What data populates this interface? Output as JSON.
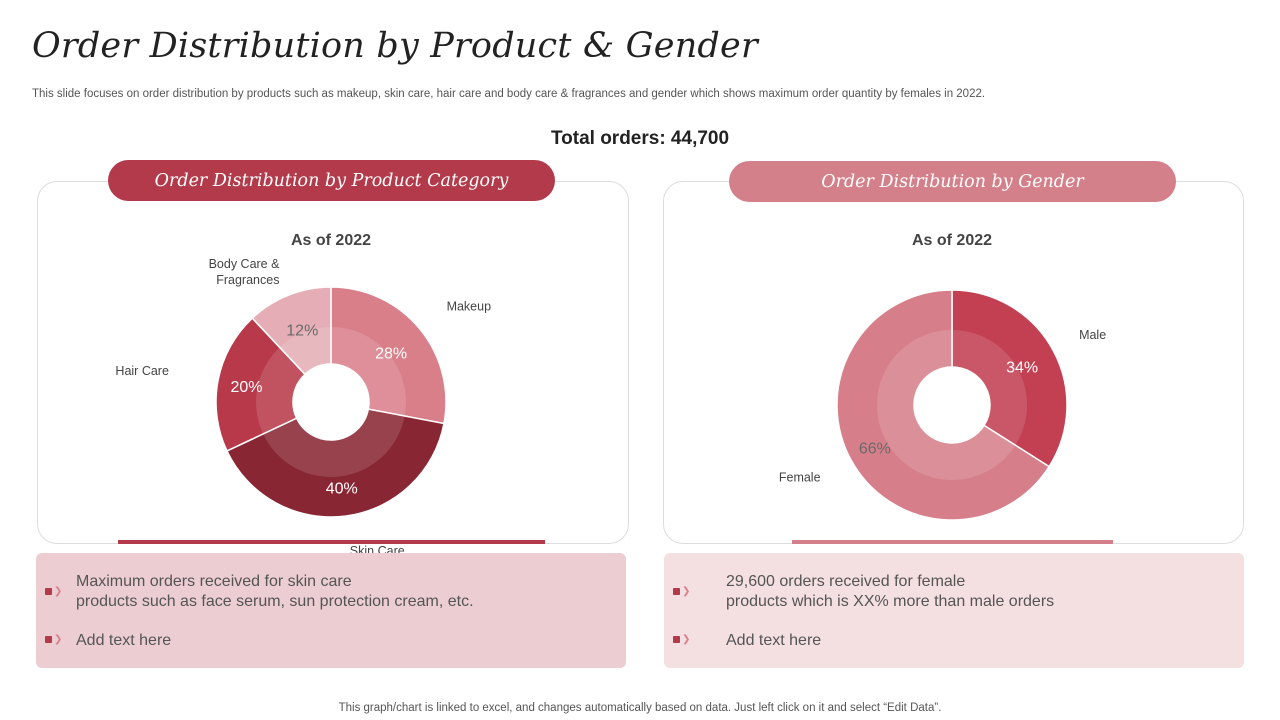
{
  "title": "Order Distribution by Product & Gender",
  "subtitle": "This slide focuses on order distribution by products such as makeup, skin care, hair care and body care & fragrances and gender which shows maximum order quantity by females in 2022.",
  "total_orders": "Total orders: 44,700",
  "left_panel": {
    "header": "Order Distribution by Product Category",
    "as_of": "As of 2022",
    "bullets": [
      {
        "line1": "Maximum orders received for skin care",
        "line2": "products such as face serum, sun protection cream, etc."
      },
      {
        "line1": "Add text here",
        "line2": ""
      }
    ]
  },
  "right_panel": {
    "header": "Order Distribution by Gender",
    "as_of": "As of 2022",
    "bullets": [
      {
        "line1": "29,600 orders received for female",
        "line2": "products which is XX% more than male orders"
      },
      {
        "line1": "Add text here",
        "line2": ""
      }
    ]
  },
  "footer": "This graph/chart is linked to excel,  and changes automatically based on data. Just left click on it and select “Edit Data”.",
  "colors": {
    "accent_dark": "#b33a4a",
    "accent_light": "#d4808b"
  },
  "chart_data": [
    {
      "type": "pie",
      "variant": "donut",
      "title": "As of 2022",
      "categories": [
        "Makeup",
        "Skin Care",
        "Hair Care",
        "Body Care & Fragrances"
      ],
      "category_display": [
        "Makeup",
        "Skin Care",
        "Hair Care",
        "Body Care &\nFragrances"
      ],
      "values": [
        28,
        40,
        20,
        12
      ],
      "value_labels": [
        "28%",
        "40%",
        "20%",
        "12%"
      ],
      "colors": [
        "#d97f8a",
        "#892634",
        "#b83949",
        "#e5aeb6"
      ],
      "start_angle_deg": 0,
      "legend": "none"
    },
    {
      "type": "pie",
      "variant": "donut",
      "title": "As of 2022",
      "categories": [
        "Male",
        "Female"
      ],
      "category_display": [
        "Male",
        "Female"
      ],
      "values": [
        34,
        66
      ],
      "value_labels": [
        "34%",
        "66%"
      ],
      "colors": [
        "#c33f52",
        "#d67f8a"
      ],
      "start_angle_deg": 0,
      "legend": "none"
    }
  ]
}
